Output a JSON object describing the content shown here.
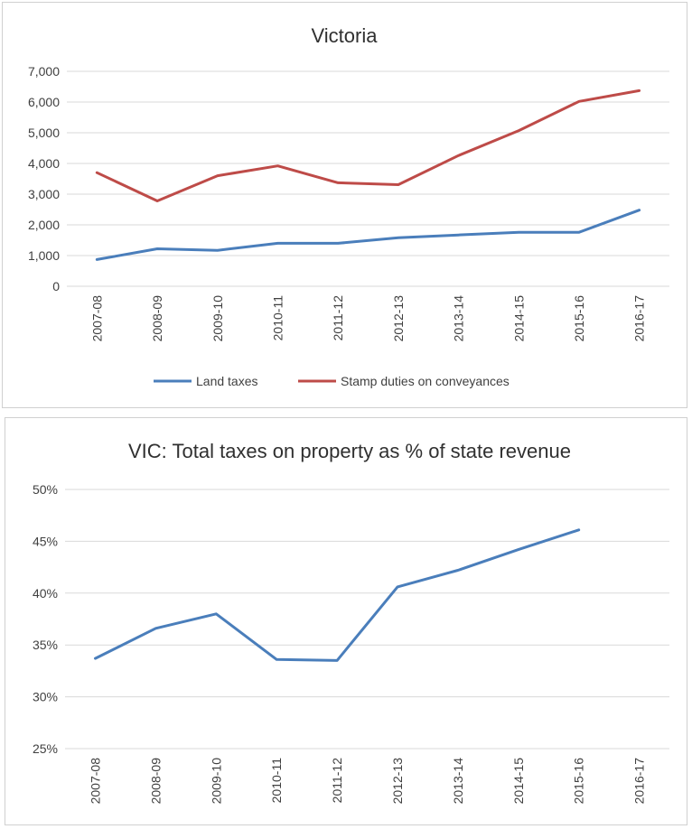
{
  "chart_data": [
    {
      "type": "line",
      "title": "Victoria",
      "categories": [
        "2007-08",
        "2008-09",
        "2009-10",
        "2010-11",
        "2011-12",
        "2012-13",
        "2013-14",
        "2014-15",
        "2015-16",
        "2016-17"
      ],
      "ylim": [
        0,
        7000
      ],
      "yticks": [
        "0",
        "1,000",
        "2,000",
        "3,000",
        "4,000",
        "5,000",
        "6,000",
        "7,000"
      ],
      "ytick_values": [
        0,
        1000,
        2000,
        3000,
        4000,
        5000,
        6000,
        7000
      ],
      "grid": true,
      "legend_position": "bottom",
      "series": [
        {
          "name": "Land taxes",
          "color": "#4a7ebb",
          "values": [
            870,
            1220,
            1170,
            1400,
            1400,
            1580,
            1670,
            1760,
            1760,
            2480
          ]
        },
        {
          "name": "Stamp duties on conveyances",
          "color": "#be4b48",
          "values": [
            3700,
            2780,
            3600,
            3920,
            3370,
            3310,
            4260,
            5070,
            6020,
            6370
          ]
        }
      ]
    },
    {
      "type": "line",
      "title": "VIC: Total taxes on property as % of state revenue",
      "categories": [
        "2007-08",
        "2008-09",
        "2009-10",
        "2010-11",
        "2011-12",
        "2012-13",
        "2013-14",
        "2014-15",
        "2015-16",
        "2016-17"
      ],
      "ylim": [
        25,
        50
      ],
      "yticks": [
        "25%",
        "30%",
        "35%",
        "40%",
        "45%",
        "50%"
      ],
      "ytick_values": [
        25,
        30,
        35,
        40,
        45,
        50
      ],
      "grid": true,
      "series": [
        {
          "color": "#4a7ebb",
          "values": [
            33.7,
            36.6,
            38.0,
            33.6,
            33.5,
            40.6,
            42.2,
            44.2,
            46.1,
            null
          ]
        }
      ]
    }
  ]
}
